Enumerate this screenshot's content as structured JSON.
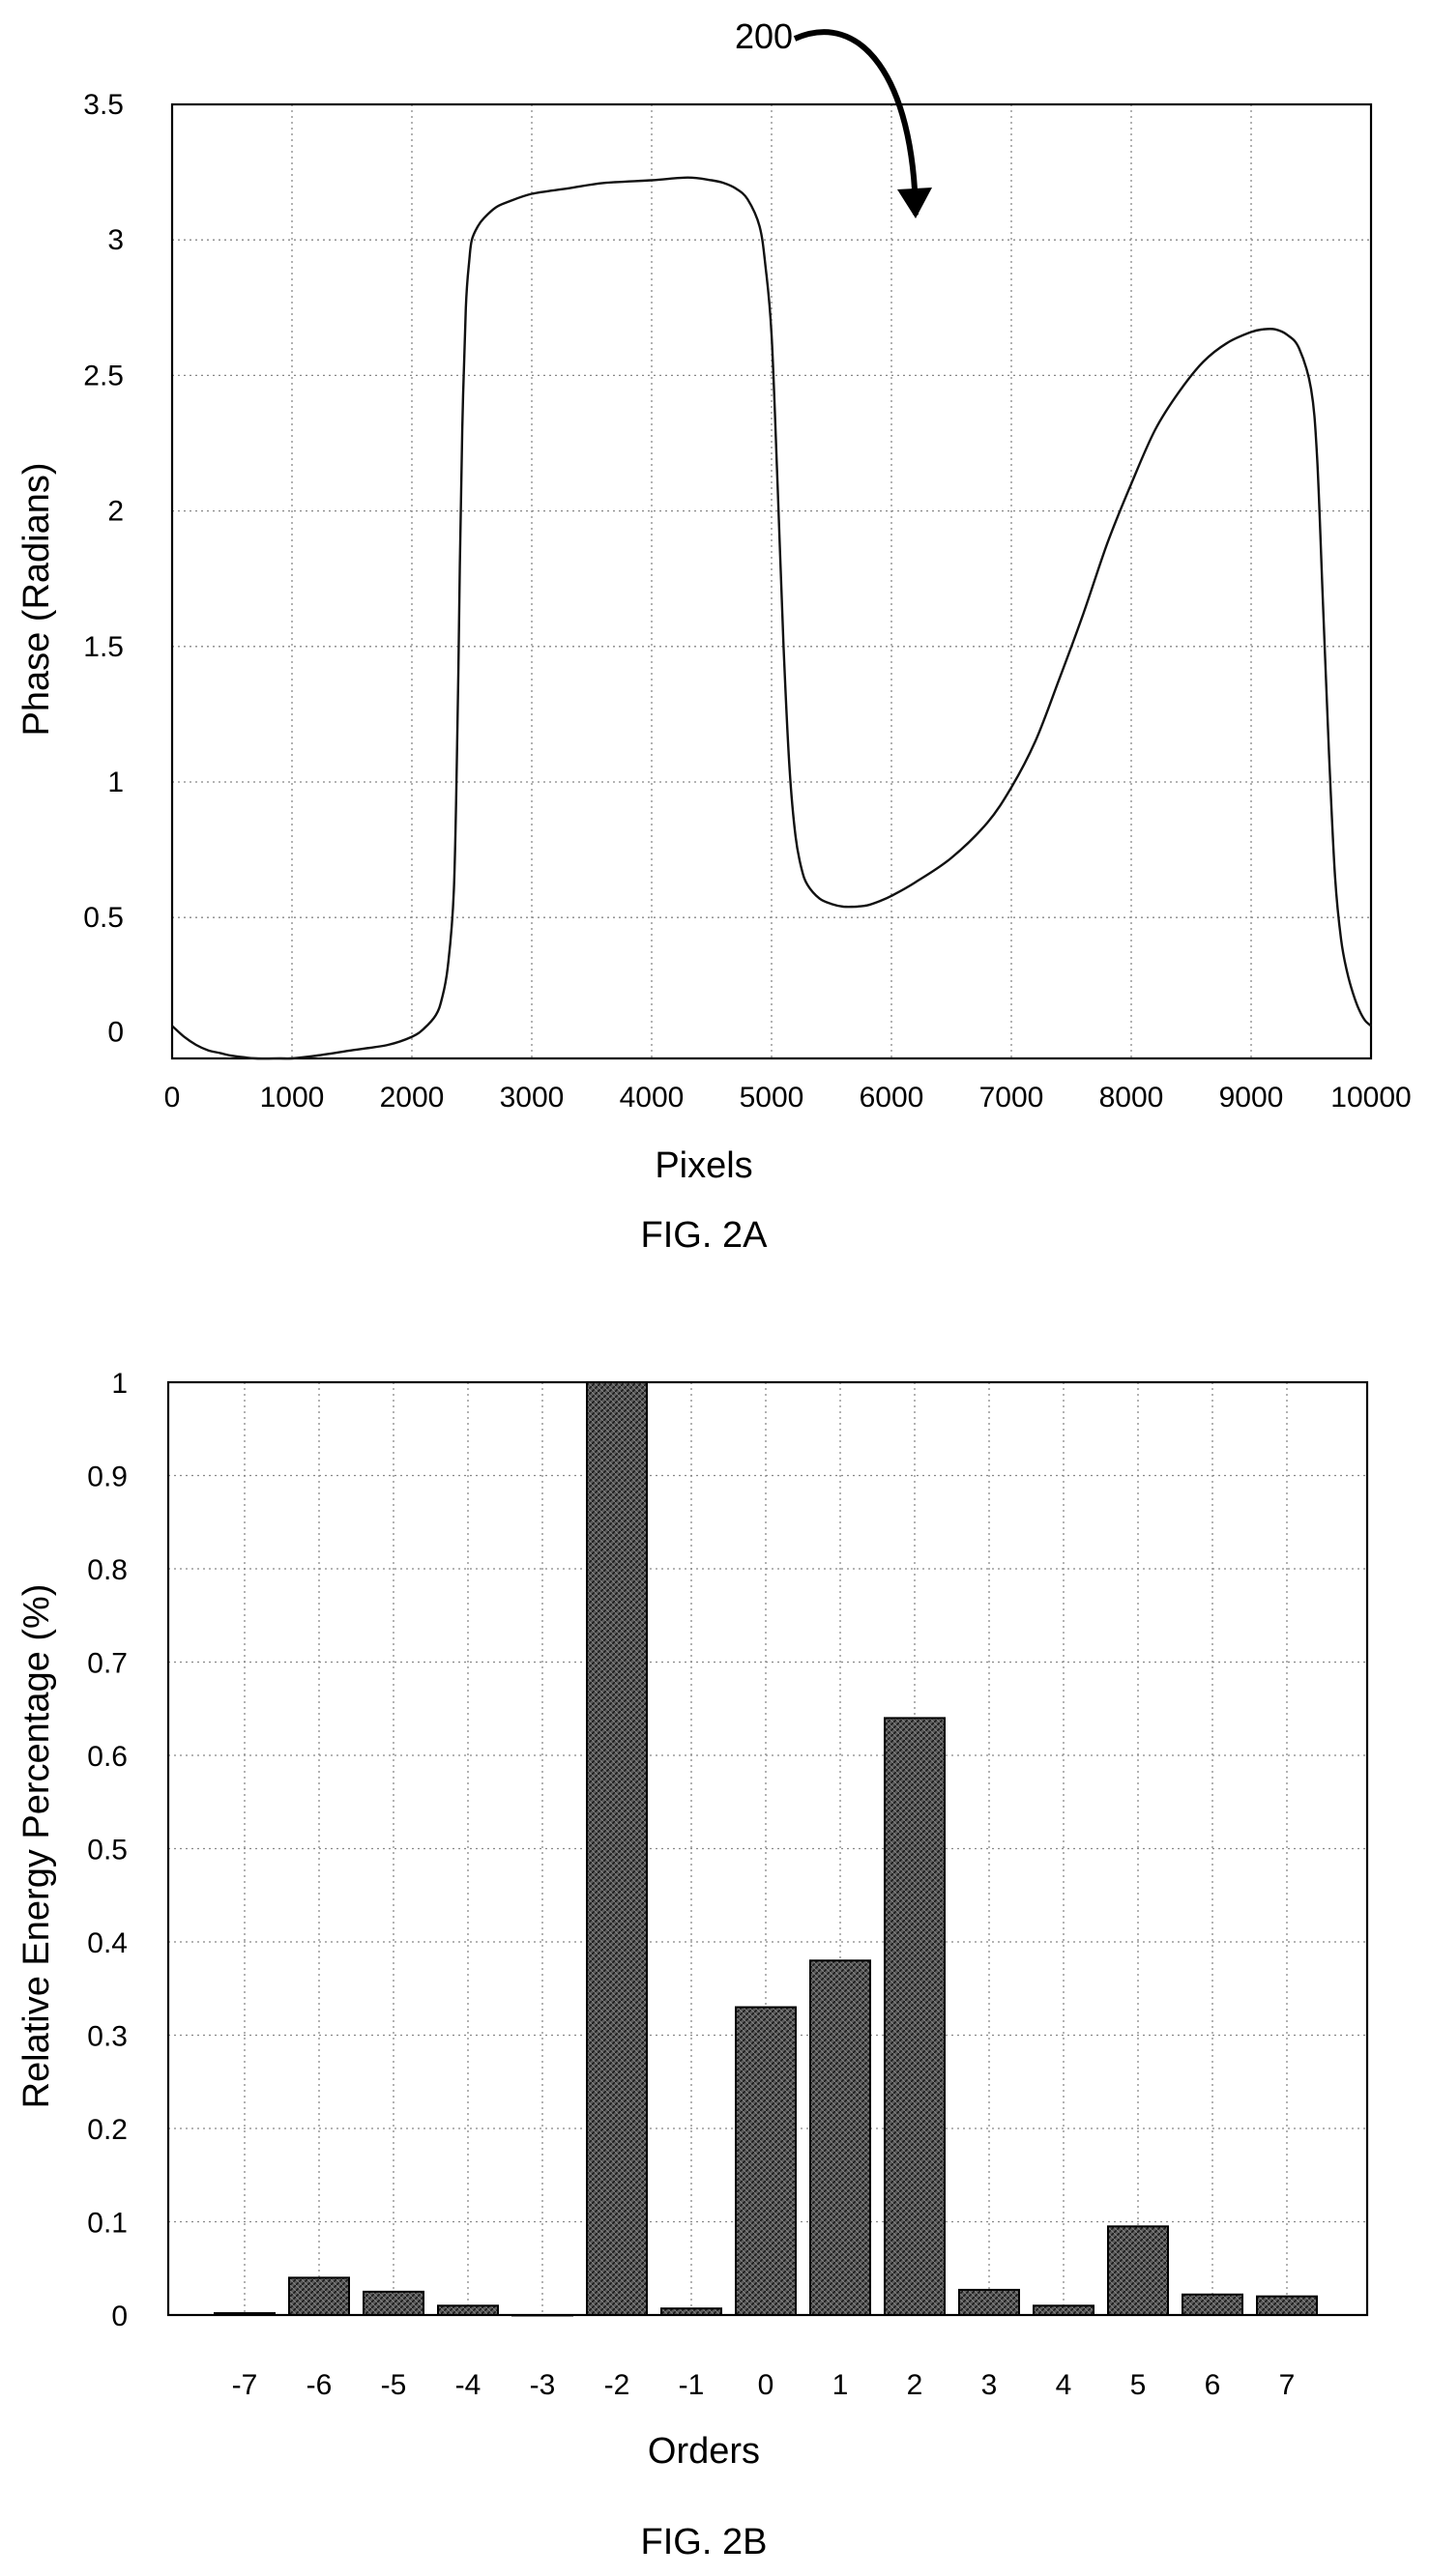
{
  "chart_data": [
    {
      "figure_label": "FIG. 2A",
      "type": "line",
      "annotation": "200",
      "xlabel": "Pixels",
      "ylabel": "Phase (Radians)",
      "xlim": [
        0,
        10000
      ],
      "ylim": [
        -0.02,
        3.5
      ],
      "x_ticks": [
        "0",
        "1000",
        "2000",
        "3000",
        "4000",
        "5000",
        "6000",
        "7000",
        "8000",
        "9000",
        "10000"
      ],
      "y_ticks": [
        "0",
        "0.5",
        "1",
        "1.5",
        "2",
        "2.5",
        "3",
        "3.5"
      ],
      "grid": true,
      "series": [
        {
          "x": [
            0,
            100,
            200,
            300,
            400,
            500,
            700,
            900,
            1000,
            1200,
            1500,
            1800,
            2000,
            2100,
            2200,
            2250,
            2300,
            2350,
            2380,
            2400,
            2420,
            2450,
            2480,
            2500,
            2550,
            2600,
            2700,
            2800,
            3000,
            3300,
            3600,
            4000,
            4300,
            4500,
            4600,
            4700,
            4800,
            4900,
            4950,
            5000,
            5050,
            5100,
            5150,
            5200,
            5250,
            5300,
            5400,
            5500,
            5600,
            5700,
            5800,
            5900,
            6000,
            6200,
            6500,
            6800,
            7000,
            7200,
            7400,
            7600,
            7800,
            8000,
            8200,
            8400,
            8600,
            8800,
            9000,
            9100,
            9200,
            9300,
            9400,
            9500,
            9550,
            9600,
            9650,
            9700,
            9750,
            9800,
            9850,
            9900,
            9950,
            10000
          ],
          "y": [
            0.1,
            0.06,
            0.03,
            0.01,
            0.0,
            -0.01,
            -0.02,
            -0.02,
            -0.02,
            -0.01,
            0.01,
            0.03,
            0.06,
            0.09,
            0.14,
            0.2,
            0.32,
            0.6,
            1.2,
            1.8,
            2.3,
            2.75,
            2.93,
            3.0,
            3.05,
            3.08,
            3.12,
            3.14,
            3.17,
            3.19,
            3.21,
            3.22,
            3.23,
            3.22,
            3.21,
            3.19,
            3.15,
            3.05,
            2.9,
            2.65,
            2.1,
            1.5,
            1.05,
            0.8,
            0.68,
            0.62,
            0.57,
            0.55,
            0.54,
            0.54,
            0.545,
            0.56,
            0.58,
            0.63,
            0.72,
            0.85,
            0.98,
            1.15,
            1.38,
            1.62,
            1.88,
            2.1,
            2.3,
            2.44,
            2.55,
            2.62,
            2.66,
            2.67,
            2.67,
            2.65,
            2.6,
            2.45,
            2.2,
            1.65,
            1.1,
            0.65,
            0.42,
            0.3,
            0.22,
            0.16,
            0.12,
            0.1
          ]
        }
      ]
    },
    {
      "figure_label": "FIG. 2B",
      "type": "bar",
      "xlabel": "Orders",
      "ylabel": "Relative Energy Percentage (%)",
      "ylim": [
        0,
        1
      ],
      "categories": [
        "-7",
        "-6",
        "-5",
        "-4",
        "-3",
        "-2",
        "-1",
        "0",
        "1",
        "2",
        "3",
        "4",
        "5",
        "6",
        "7"
      ],
      "values": [
        0.002,
        0.04,
        0.025,
        0.01,
        0.0,
        1.0,
        0.007,
        0.33,
        0.38,
        0.64,
        0.027,
        0.01,
        0.095,
        0.022,
        0.02
      ],
      "y_ticks": [
        "0",
        "0.1",
        "0.2",
        "0.3",
        "0.4",
        "0.5",
        "0.6",
        "0.7",
        "0.8",
        "0.9",
        "1"
      ],
      "grid": true
    }
  ]
}
